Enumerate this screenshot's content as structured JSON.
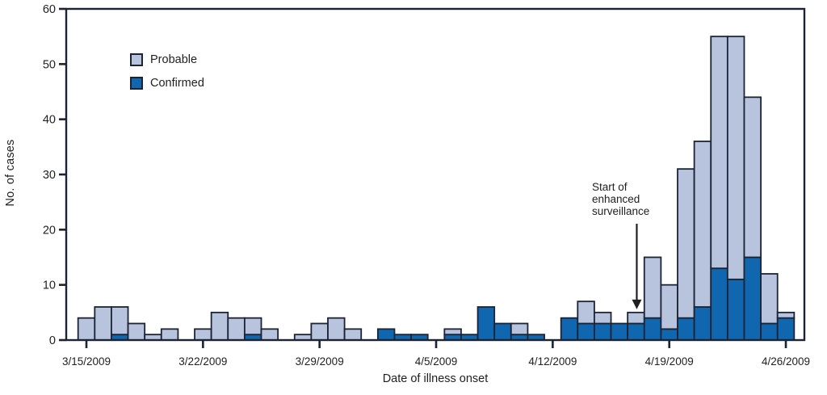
{
  "figure": {
    "y_axis": {
      "title": "No. of cases",
      "tick_labels": [
        "0",
        "10",
        "20",
        "30",
        "40",
        "50",
        "60"
      ]
    },
    "x_axis": {
      "title": "Date of illness onset",
      "tick_labels": [
        "3/15/2009",
        "3/22/2009",
        "3/29/2009",
        "4/5/2009",
        "4/12/2009",
        "4/19/2009",
        "4/26/2009"
      ]
    },
    "legend": {
      "probable_label": "Probable",
      "confirmed_label": "Confirmed"
    },
    "annotation": {
      "line1": "Start of",
      "line2": "enhanced",
      "line3": "surveillance"
    }
  },
  "chart_data": {
    "type": "bar",
    "stacked": true,
    "title": "",
    "xlabel": "Date of illness onset",
    "ylabel": "No. of cases",
    "ylim": [
      0,
      60
    ],
    "ytick_step": 10,
    "grid": false,
    "legend_position": "upper-left",
    "categories": [
      "3/15/2009",
      "3/16/2009",
      "3/17/2009",
      "3/18/2009",
      "3/19/2009",
      "3/20/2009",
      "3/21/2009",
      "3/22/2009",
      "3/23/2009",
      "3/24/2009",
      "3/25/2009",
      "3/26/2009",
      "3/27/2009",
      "3/28/2009",
      "3/29/2009",
      "3/30/2009",
      "3/31/2009",
      "4/1/2009",
      "4/2/2009",
      "4/3/2009",
      "4/4/2009",
      "4/5/2009",
      "4/6/2009",
      "4/7/2009",
      "4/8/2009",
      "4/9/2009",
      "4/10/2009",
      "4/11/2009",
      "4/12/2009",
      "4/13/2009",
      "4/14/2009",
      "4/15/2009",
      "4/16/2009",
      "4/17/2009",
      "4/18/2009",
      "4/19/2009",
      "4/20/2009",
      "4/21/2009",
      "4/22/2009",
      "4/23/2009",
      "4/24/2009",
      "4/25/2009",
      "4/26/2009"
    ],
    "x_tick_positions": [
      0,
      7,
      14,
      21,
      28,
      35,
      42
    ],
    "series": [
      {
        "name": "Confirmed",
        "color": "#1067b0",
        "values": [
          0,
          0,
          1,
          0,
          0,
          0,
          0,
          0,
          0,
          0,
          1,
          0,
          0,
          0,
          0,
          0,
          0,
          0,
          2,
          1,
          1,
          0,
          1,
          1,
          6,
          3,
          1,
          1,
          0,
          4,
          3,
          3,
          3,
          3,
          4,
          2,
          4,
          6,
          13,
          11,
          15,
          3,
          4
        ]
      },
      {
        "name": "Probable",
        "color": "#b8c4dd",
        "values": [
          4,
          6,
          5,
          3,
          1,
          2,
          0,
          2,
          5,
          4,
          3,
          2,
          0,
          1,
          3,
          4,
          2,
          0,
          0,
          0,
          0,
          0,
          1,
          0,
          0,
          0,
          2,
          0,
          0,
          0,
          4,
          2,
          0,
          2,
          11,
          8,
          27,
          30,
          42,
          44,
          29,
          9,
          1
        ]
      }
    ],
    "annotation": {
      "text": "Start of enhanced surveillance",
      "x_index": 33
    }
  }
}
